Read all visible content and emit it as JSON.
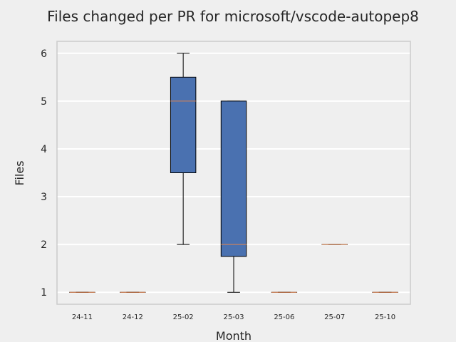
{
  "chart_data": {
    "type": "box",
    "title": "Files changed per PR for microsoft/vscode-autopep8",
    "xlabel": "Month",
    "ylabel": "Files",
    "categories": [
      "24-11",
      "24-12",
      "25-02",
      "25-03",
      "25-06",
      "25-07",
      "25-10"
    ],
    "boxes": [
      {
        "whisker_low": 1,
        "q1": 1,
        "median": 1,
        "q3": 1,
        "whisker_high": 1
      },
      {
        "whisker_low": 1,
        "q1": 1,
        "median": 1,
        "q3": 1,
        "whisker_high": 1
      },
      {
        "whisker_low": 2,
        "q1": 3.5,
        "median": 5,
        "q3": 5.5,
        "whisker_high": 6
      },
      {
        "whisker_low": 1,
        "q1": 1.75,
        "median": 2,
        "q3": 5,
        "whisker_high": 5
      },
      {
        "whisker_low": 1,
        "q1": 1,
        "median": 1,
        "q3": 1,
        "whisker_high": 1
      },
      {
        "whisker_low": 2,
        "q1": 2,
        "median": 2,
        "q3": 2,
        "whisker_high": 2
      },
      {
        "whisker_low": 1,
        "q1": 1,
        "median": 1,
        "q3": 1,
        "whisker_high": 1
      }
    ],
    "yticks": [
      1,
      2,
      3,
      4,
      5,
      6
    ],
    "ylim": [
      0.75,
      6.25
    ],
    "grid": true,
    "colors": {
      "box_fill": "#4a71b0",
      "box_edge": "#000000",
      "median": "#dd8452",
      "grid": "#ffffff",
      "plot_bg": "#efefef",
      "frame": "#cccccc"
    }
  }
}
